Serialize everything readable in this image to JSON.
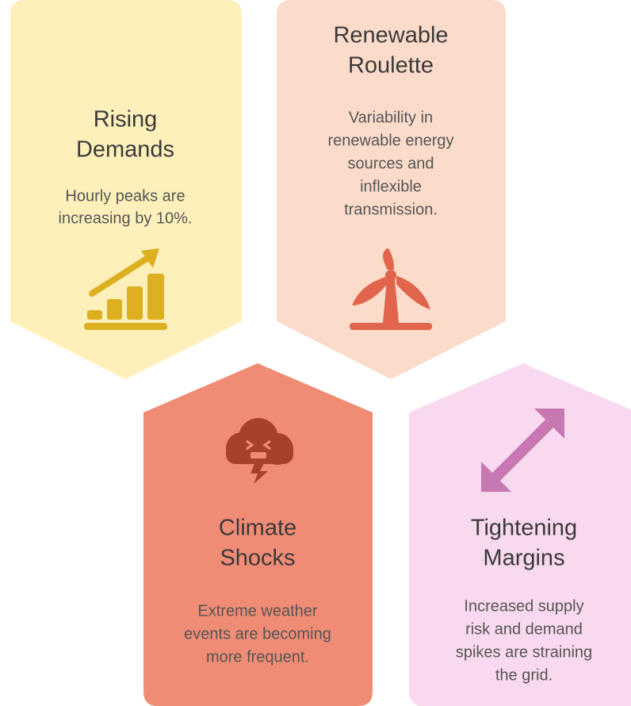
{
  "cards": [
    {
      "title_lines": [
        "Rising",
        "Demands"
      ],
      "description_lines": [
        "Hourly peaks are",
        "increasing by 10%."
      ]
    },
    {
      "title_lines": [
        "Renewable",
        "Roulette"
      ],
      "description_lines": [
        "Variability in",
        "renewable energy",
        "sources and",
        "inflexible",
        "transmission."
      ]
    },
    {
      "title_lines": [
        "Climate",
        "Shocks"
      ],
      "description_lines": [
        "Extreme weather",
        "events are becoming",
        "more frequent."
      ]
    },
    {
      "title_lines": [
        "Tightening",
        "Margins"
      ],
      "description_lines": [
        "Increased supply",
        "risk and demand",
        "spikes are straining",
        "the grid."
      ]
    }
  ]
}
